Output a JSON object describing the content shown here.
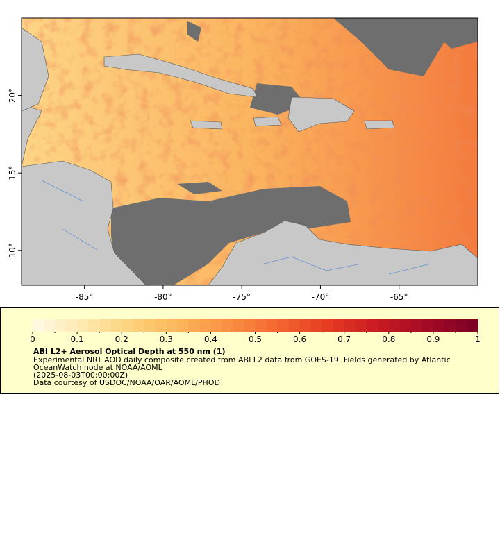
{
  "map": {
    "xlim": [
      -89,
      -60
    ],
    "ylim": [
      7.75,
      25
    ],
    "xticks": [
      {
        "value": -85,
        "label": "-85°"
      },
      {
        "value": -80,
        "label": "-80°"
      },
      {
        "value": -75,
        "label": "-75°"
      },
      {
        "value": -70,
        "label": "-70°"
      },
      {
        "value": -65,
        "label": "-65°"
      }
    ],
    "yticks": [
      {
        "value": 10,
        "label": "10°"
      },
      {
        "value": 15,
        "label": "15°"
      },
      {
        "value": 20,
        "label": "20°"
      }
    ]
  },
  "legend": {
    "title": "ABI L2+ Aerosol Optical Depth at 550 nm (1)",
    "lines": [
      "Experimental NRT AOD daily composite created from ABI L2 data from GOES-19. Fields generated by Atlantic",
      "OceanWatch node at NOAA/AOML",
      "(2025-08-03T00:00:00Z)",
      "Data courtesy of USDOC/NOAA/OAR/AOML/PHOD"
    ],
    "colorbar": {
      "clim": [
        0,
        1
      ],
      "ticks": [
        0,
        0.1,
        0.2,
        0.3,
        0.4,
        0.5,
        0.6,
        0.7,
        0.8,
        0.9,
        1
      ],
      "colors": [
        "#fffbe6",
        "#fee9b0",
        "#fdd27a",
        "#fcb45a",
        "#f98e42",
        "#f4642f",
        "#e43a22",
        "#c81a22",
        "#a30a26",
        "#7a0026"
      ]
    }
  }
}
